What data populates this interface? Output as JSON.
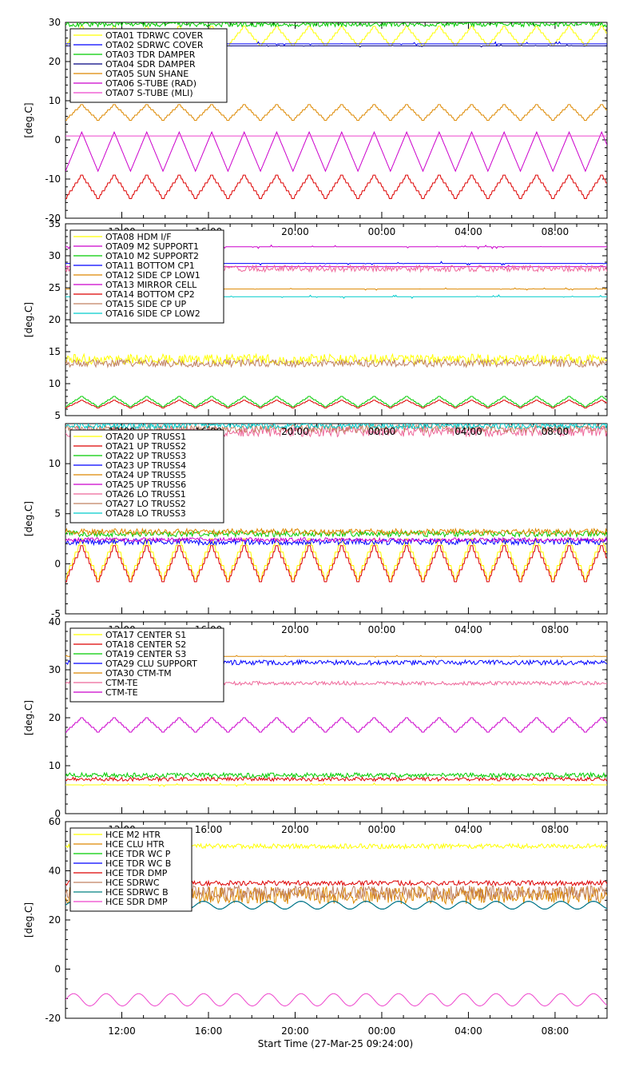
{
  "footer": {
    "xlabel": "Start Time (27-Mar-25 09:24:00)"
  },
  "chart_data": [
    {
      "type": "line",
      "ylabel": "[deg.C]",
      "ylim": [
        -20,
        30
      ],
      "yticks": [
        "-20",
        "-10",
        "0",
        "10",
        "20",
        "30"
      ],
      "xlim": [
        0,
        25
      ],
      "xticks": [
        "12:00",
        "16:00",
        "20:00",
        "00:00",
        "04:00",
        "08:00"
      ],
      "xtick_hours": [
        2.6,
        6.6,
        10.6,
        14.6,
        18.6,
        22.6
      ],
      "show_xtick_labels": false,
      "series": [
        {
          "name": "OTA01 TDRWC COVER",
          "color": "#ffff00",
          "base": 26.5,
          "amp": 2.5,
          "period": 1.5,
          "mode": "step"
        },
        {
          "name": "OTA02 SDRWC COVER",
          "color": "#0000ff",
          "base": 24.5,
          "amp": 0.6,
          "period": 1.5,
          "mode": "flat"
        },
        {
          "name": "OTA03 TDR DAMPER",
          "color": "#00cc00",
          "base": 29.5,
          "amp": 0.6,
          "period": 0.3,
          "mode": "noise"
        },
        {
          "name": "OTA04 SDR DAMPER",
          "color": "#000080",
          "base": 24.0,
          "amp": 0.3,
          "period": 1.5,
          "mode": "flat"
        },
        {
          "name": "OTA05 SUN SHANE",
          "color": "#dd8800",
          "base": 7.0,
          "amp": 2.0,
          "period": 1.5,
          "mode": "step"
        },
        {
          "name": "OTA06 S-TUBE (RAD)",
          "color": "#cc00cc",
          "base": -3.0,
          "amp": 5.0,
          "period": 1.5,
          "mode": "tri"
        },
        {
          "name": "OTA07 S-TUBE (MLI)",
          "color": "#ee44cc",
          "base": 1.0,
          "amp": 0.0,
          "period": 1.5,
          "mode": "flat"
        },
        {
          "name": "",
          "color": "#dd0000",
          "base": -12.0,
          "amp": 3.0,
          "period": 1.5,
          "mode": "step"
        }
      ]
    },
    {
      "type": "line",
      "ylabel": "[deg.C]",
      "ylim": [
        5,
        35
      ],
      "yticks": [
        "5",
        "10",
        "15",
        "20",
        "25",
        "30",
        "35"
      ],
      "xlim": [
        0,
        25
      ],
      "xticks": [
        "12:00",
        "16:00",
        "20:00",
        "00:00",
        "04:00",
        "08:00"
      ],
      "xtick_hours": [
        2.6,
        6.6,
        10.6,
        14.6,
        18.6,
        22.6
      ],
      "show_xtick_labels": true,
      "series": [
        {
          "name": "OTA08 HDM I/F",
          "color": "#ffff00",
          "base": 13.8,
          "amp": 0.8,
          "period": 0.8,
          "mode": "noise"
        },
        {
          "name": "OTA09 M2 SUPPORT1",
          "color": "#cc00cc",
          "base": 31.4,
          "amp": 0.3,
          "period": 0.5,
          "mode": "flat"
        },
        {
          "name": "OTA10 M2 SUPPORT2",
          "color": "#00cc00",
          "base": 7.2,
          "amp": 0.8,
          "period": 1.5,
          "mode": "step"
        },
        {
          "name": "OTA11 BOTTOM CP1",
          "color": "#0000ff",
          "base": 28.8,
          "amp": 0.3,
          "period": 0.5,
          "mode": "flat"
        },
        {
          "name": "OTA12 SIDE CP LOW1",
          "color": "#dd8800",
          "base": 24.8,
          "amp": 0.2,
          "period": 0.5,
          "mode": "flat"
        },
        {
          "name": "OTA13 MIRROR CELL",
          "color": "#cc00cc",
          "base": 28.3,
          "amp": 0.2,
          "period": 0.5,
          "mode": "flat"
        },
        {
          "name": "OTA14 BOTTOM CP2",
          "color": "#dd0000",
          "base": 6.8,
          "amp": 0.6,
          "period": 1.5,
          "mode": "step"
        },
        {
          "name": "OTA15 SIDE CP UP",
          "color": "#c08060",
          "base": 13.2,
          "amp": 0.6,
          "period": 0.4,
          "mode": "noise"
        },
        {
          "name": "OTA16 SIDE CP LOW2",
          "color": "#00cccc",
          "base": 23.6,
          "amp": 0.3,
          "period": 0.5,
          "mode": "flat"
        },
        {
          "name": "",
          "color": "#ee6699",
          "base": 28.0,
          "amp": 0.5,
          "period": 0.5,
          "mode": "noise"
        }
      ]
    },
    {
      "type": "line",
      "ylabel": "[deg.C]",
      "ylim": [
        -5,
        14
      ],
      "yticks": [
        "-5",
        "0",
        "5",
        "10"
      ],
      "xlim": [
        0,
        25
      ],
      "xticks": [
        "12:00",
        "16:00",
        "20:00",
        "00:00",
        "04:00",
        "08:00"
      ],
      "xtick_hours": [
        2.6,
        6.6,
        10.6,
        14.6,
        18.6,
        22.6
      ],
      "show_xtick_labels": true,
      "series": [
        {
          "name": "OTA20 UP TRUSS1",
          "color": "#ffff00",
          "base": 0.5,
          "amp": 2.0,
          "period": 1.5,
          "mode": "step"
        },
        {
          "name": "OTA21 UP TRUSS2",
          "color": "#dd0000",
          "base": 0.0,
          "amp": 1.8,
          "period": 1.5,
          "mode": "step"
        },
        {
          "name": "OTA22 UP TRUSS3",
          "color": "#00cc00",
          "base": 3.0,
          "amp": 0.3,
          "period": 0.4,
          "mode": "noise"
        },
        {
          "name": "OTA23 UP TRUSS4",
          "color": "#0000ff",
          "base": 2.2,
          "amp": 0.3,
          "period": 0.5,
          "mode": "noise"
        },
        {
          "name": "OTA24 UP TRUSS5",
          "color": "#dd8800",
          "base": 3.2,
          "amp": 0.3,
          "period": 0.5,
          "mode": "noise"
        },
        {
          "name": "OTA25 UP TRUSS6",
          "color": "#cc00cc",
          "base": 2.4,
          "amp": 0.2,
          "period": 0.5,
          "mode": "noise"
        },
        {
          "name": "OTA26 LO TRUSS1",
          "color": "#ee6699",
          "base": 13.2,
          "amp": 0.5,
          "period": 0.3,
          "mode": "noise"
        },
        {
          "name": "OTA27 LO TRUSS2",
          "color": "#c08060",
          "base": 13.5,
          "amp": 0.4,
          "period": 0.3,
          "mode": "noise"
        },
        {
          "name": "OTA28 LO TRUSS3",
          "color": "#00cccc",
          "base": 13.8,
          "amp": 0.3,
          "period": 0.4,
          "mode": "noise"
        }
      ]
    },
    {
      "type": "line",
      "ylabel": "[deg.C]",
      "ylim": [
        0,
        40
      ],
      "yticks": [
        "0",
        "10",
        "20",
        "30",
        "40"
      ],
      "xlim": [
        0,
        25
      ],
      "xticks": [
        "12:00",
        "16:00",
        "20:00",
        "00:00",
        "04:00",
        "08:00"
      ],
      "xtick_hours": [
        2.6,
        6.6,
        10.6,
        14.6,
        18.6,
        22.6
      ],
      "show_xtick_labels": true,
      "series": [
        {
          "name": "OTA17 CENTER S1",
          "color": "#ffff00",
          "base": 6.0,
          "amp": 0.4,
          "period": 0.5,
          "mode": "flat"
        },
        {
          "name": "OTA18 CENTER S2",
          "color": "#dd0000",
          "base": 7.2,
          "amp": 0.4,
          "period": 0.5,
          "mode": "noise"
        },
        {
          "name": "OTA19 CENTER S3",
          "color": "#00cc00",
          "base": 8.0,
          "amp": 0.5,
          "period": 0.3,
          "mode": "noise"
        },
        {
          "name": "OTA29 CLU SUPPORT",
          "color": "#0000ff",
          "base": 31.5,
          "amp": 0.5,
          "period": 0.5,
          "mode": "noise"
        },
        {
          "name": "OTA30 CTM-TM",
          "color": "#dd8800",
          "base": 32.8,
          "amp": 0.2,
          "period": 0.5,
          "mode": "flat"
        },
        {
          "name": "CTM-TE",
          "color": "#ee6699",
          "base": 27.2,
          "amp": 0.4,
          "period": 0.5,
          "mode": "noise"
        },
        {
          "name": "CTM-TE",
          "color": "#cc00cc",
          "base": 18.5,
          "amp": 1.5,
          "period": 1.5,
          "mode": "step"
        }
      ]
    },
    {
      "type": "line",
      "ylabel": "[deg.C]",
      "ylim": [
        -20,
        60
      ],
      "yticks": [
        "-20",
        "0",
        "20",
        "40",
        "60"
      ],
      "xlim": [
        0,
        25
      ],
      "xticks": [
        "12:00",
        "16:00",
        "20:00",
        "00:00",
        "04:00",
        "08:00"
      ],
      "xtick_hours": [
        2.6,
        6.6,
        10.6,
        14.6,
        18.6,
        22.6
      ],
      "show_xtick_labels": true,
      "series": [
        {
          "name": "HCE M2 HTR",
          "color": "#ffff00",
          "base": 50.0,
          "amp": 1.0,
          "period": 0.2,
          "mode": "noise"
        },
        {
          "name": "HCE CLU HTR",
          "color": "#dd8800",
          "base": 30.0,
          "amp": 3.5,
          "period": 0.2,
          "mode": "noise"
        },
        {
          "name": "HCE TDR WC P",
          "color": "#00cc00",
          "base": 26.0,
          "amp": 1.6,
          "period": 1.5,
          "mode": "sine"
        },
        {
          "name": "HCE TDR WC B",
          "color": "#0000ff",
          "base": 26.0,
          "amp": 1.6,
          "period": 1.5,
          "mode": "sine"
        },
        {
          "name": "HCE TDR DMP",
          "color": "#dd0000",
          "base": 35.0,
          "amp": 1.0,
          "period": 0.2,
          "mode": "noise"
        },
        {
          "name": "HCE SDRWC",
          "color": "#c08060",
          "base": 31.0,
          "amp": 3.0,
          "period": 0.2,
          "mode": "noise"
        },
        {
          "name": "HCE SDRWC B",
          "color": "#008080",
          "base": 26.0,
          "amp": 1.6,
          "period": 1.5,
          "mode": "sine"
        },
        {
          "name": "HCE SDR DMP",
          "color": "#ee44cc",
          "base": -12.5,
          "amp": 2.5,
          "period": 1.5,
          "mode": "sine"
        }
      ]
    }
  ]
}
